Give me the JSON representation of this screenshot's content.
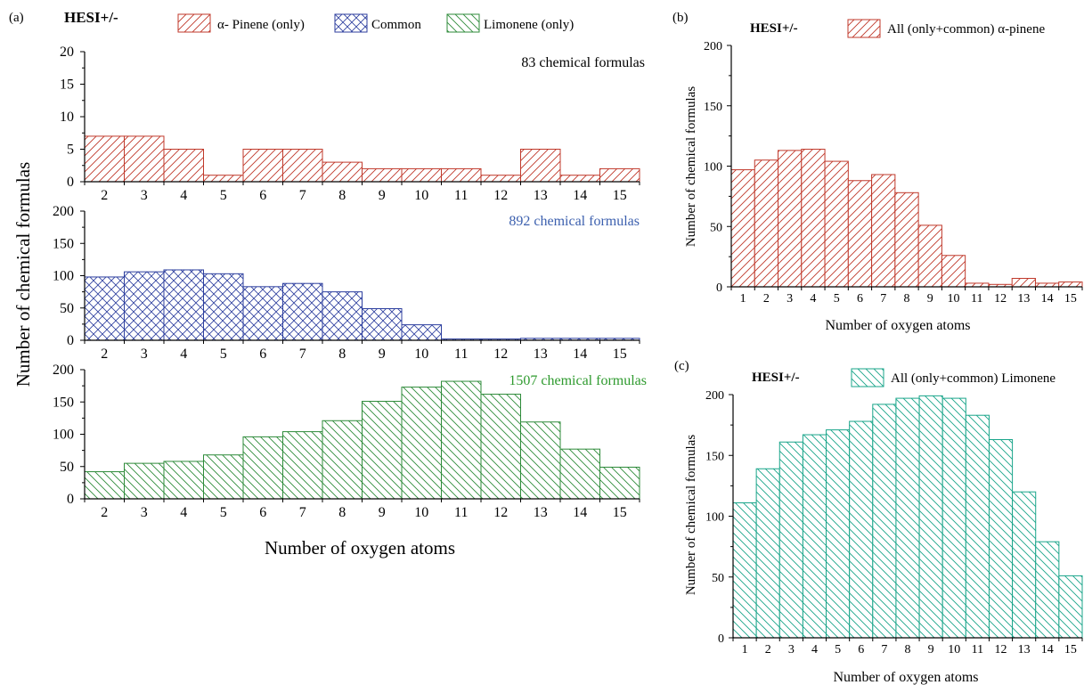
{
  "colors": {
    "pinene": "#c0392b",
    "common": "#2c3e9e",
    "limonene_a": "#2e8b3a",
    "limonene_c": "#1aa58a",
    "blue_text": "#3b5fae",
    "green_text": "#2e9a2e"
  },
  "panels": {
    "a": {
      "letter": "(a)",
      "mode": "HESI+/-",
      "legend": [
        "α- Pinene (only)",
        "Common",
        "Limonene (only)"
      ],
      "ylabel": "Number of chemical formulas",
      "xlabel": "Number of oxygen atoms"
    },
    "b": {
      "letter": "(b)",
      "mode": "HESI+/-",
      "legend": "All (only+common) α-pinene",
      "ylabel": "Number of chemical formulas",
      "xlabel": "Number of oxygen atoms"
    },
    "c": {
      "letter": "(c)",
      "mode": "HESI+/-",
      "legend": "All (only+common) Limonene",
      "ylabel": "Number of chemical formulas",
      "xlabel": "Number of oxygen atoms"
    }
  },
  "chart_data": [
    {
      "id": "a1",
      "type": "bar",
      "annotation": "83 chemical formulas",
      "categories": [
        2,
        3,
        4,
        5,
        6,
        7,
        8,
        9,
        10,
        11,
        12,
        13,
        14,
        15
      ],
      "values": [
        7,
        7,
        5,
        1,
        5,
        5,
        3,
        2,
        2,
        2,
        1,
        5,
        1,
        2
      ],
      "ylim": [
        0,
        20
      ],
      "yticks": [
        0,
        5,
        10,
        15,
        20
      ],
      "pattern": "diag"
    },
    {
      "id": "a2",
      "type": "bar",
      "annotation": "892 chemical formulas",
      "categories": [
        2,
        3,
        4,
        5,
        6,
        7,
        8,
        9,
        10,
        11,
        12,
        13,
        14,
        15
      ],
      "values": [
        98,
        106,
        109,
        103,
        83,
        88,
        75,
        49,
        24,
        2,
        2,
        3,
        3,
        3
      ],
      "ylim": [
        0,
        200
      ],
      "yticks": [
        0,
        50,
        100,
        150,
        200
      ],
      "pattern": "cross"
    },
    {
      "id": "a3",
      "type": "bar",
      "annotation": "1507 chemical formulas",
      "categories": [
        2,
        3,
        4,
        5,
        6,
        7,
        8,
        9,
        10,
        11,
        12,
        13,
        14,
        15
      ],
      "values": [
        42,
        55,
        58,
        68,
        96,
        104,
        121,
        151,
        173,
        182,
        162,
        119,
        77,
        49
      ],
      "ylim": [
        0,
        200
      ],
      "yticks": [
        0,
        50,
        100,
        150,
        200
      ],
      "pattern": "anti"
    },
    {
      "id": "b",
      "type": "bar",
      "categories": [
        1,
        2,
        3,
        4,
        5,
        6,
        7,
        8,
        9,
        10,
        11,
        12,
        13,
        14,
        15
      ],
      "values": [
        97,
        105,
        113,
        114,
        104,
        88,
        93,
        78,
        51,
        26,
        3,
        2,
        7,
        3,
        4
      ],
      "ylim": [
        0,
        200
      ],
      "yticks": [
        0,
        50,
        100,
        150,
        200
      ],
      "pattern": "diag"
    },
    {
      "id": "c",
      "type": "bar",
      "categories": [
        1,
        2,
        3,
        4,
        5,
        6,
        7,
        8,
        9,
        10,
        11,
        12,
        13,
        14,
        15
      ],
      "values": [
        111,
        139,
        161,
        167,
        171,
        178,
        192,
        197,
        199,
        197,
        183,
        163,
        120,
        79,
        51
      ],
      "ylim": [
        0,
        200
      ],
      "yticks": [
        0,
        50,
        100,
        150,
        200
      ],
      "pattern": "anti"
    }
  ]
}
